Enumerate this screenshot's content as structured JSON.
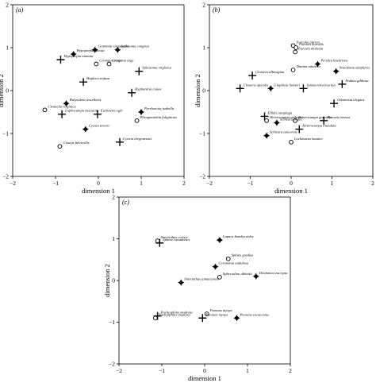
{
  "chart_data": [
    {
      "type": "scatter",
      "panel_label": "(a)",
      "xlabel": "dimension 1",
      "ylabel": "dimension 2",
      "xlim": [
        -2,
        2
      ],
      "ylim": [
        -2,
        2
      ],
      "xticks": [
        "−2",
        "−1",
        "0",
        "1",
        "2"
      ],
      "yticks": [
        "2",
        "1",
        "0",
        "−1",
        "−2"
      ],
      "points": [
        {
          "label": "Grammia virguncula",
          "x": -0.08,
          "y": 0.95,
          "marker": "filled"
        },
        {
          "label": "Spilosoma congrua",
          "x": 0.45,
          "y": 0.95,
          "marker": "filled"
        },
        {
          "label": "Hypoprepia fucosa",
          "x": -0.58,
          "y": 0.85,
          "marker": "filled"
        },
        {
          "label": "Grammia virgo",
          "x": -0.05,
          "y": 0.62,
          "marker": "open"
        },
        {
          "label": "Grammia arge",
          "x": 0.25,
          "y": 0.62,
          "marker": "open"
        },
        {
          "label": "Hypoprepia miniata",
          "x": -0.88,
          "y": 0.72,
          "marker": "plus"
        },
        {
          "label": "Spilosoma virginica",
          "x": 0.95,
          "y": 0.45,
          "marker": "plus"
        },
        {
          "label": "Haploa confusa",
          "x": -0.35,
          "y": 0.2,
          "marker": "plus"
        },
        {
          "label": "Hyphantria cunea",
          "x": 0.78,
          "y": -0.05,
          "marker": "plus"
        },
        {
          "label": "Halysidota tessellaris",
          "x": -0.75,
          "y": -0.3,
          "marker": "filled"
        },
        {
          "label": "Euchaetes egle",
          "x": -0.02,
          "y": -0.55,
          "marker": "plus"
        },
        {
          "label": "Pyrrharctia isabella",
          "x": 1.0,
          "y": -0.5,
          "marker": "filled"
        },
        {
          "label": "Ctenucha virginica",
          "x": -1.25,
          "y": -0.45,
          "marker": "open"
        },
        {
          "label": "Lophocampa maculata",
          "x": -0.85,
          "y": -0.55,
          "marker": "plus"
        },
        {
          "label": "Phragmatobia fuliginosa",
          "x": 0.9,
          "y": -0.7,
          "marker": "open"
        },
        {
          "label": "Cycnia tenera",
          "x": -0.3,
          "y": -0.9,
          "marker": "filled"
        },
        {
          "label": "Cisseps fulvicollis",
          "x": -0.9,
          "y": -1.3,
          "marker": "open"
        },
        {
          "label": "Cycnia oregonensis",
          "x": 0.5,
          "y": -1.2,
          "marker": "plus"
        }
      ]
    },
    {
      "type": "scatter",
      "panel_label": "(b)",
      "xlabel": "dimension 1",
      "ylabel": "dimension 2",
      "xlim": [
        -2,
        2
      ],
      "ylim": [
        -2,
        2
      ],
      "xticks": [
        "−2",
        "−1",
        "0",
        "1",
        "2"
      ],
      "yticks": [
        "2",
        "1",
        "0",
        "−1",
        "−2"
      ],
      "points": [
        {
          "label": "Furcula cinerea",
          "x": 0.05,
          "y": 1.05,
          "marker": "open"
        },
        {
          "label": "Furcula borealis",
          "x": 0.12,
          "y": 1.0,
          "marker": "open"
        },
        {
          "label": "Furcula modesta",
          "x": 0.1,
          "y": 0.9,
          "marker": "open"
        },
        {
          "label": "Peridea basitriens",
          "x": 0.65,
          "y": 0.62,
          "marker": "filled"
        },
        {
          "label": "Notodonta simplaria",
          "x": 1.1,
          "y": 0.45,
          "marker": "filled"
        },
        {
          "label": "Datana ministra",
          "x": 0.05,
          "y": 0.48,
          "marker": "open"
        },
        {
          "label": "Clostera albosigma",
          "x": -0.95,
          "y": 0.35,
          "marker": "plus"
        },
        {
          "label": "Clostera apicalis",
          "x": -1.25,
          "y": 0.05,
          "marker": "plus"
        },
        {
          "label": "Gluphisia lintneri",
          "x": -0.5,
          "y": 0.05,
          "marker": "filled"
        },
        {
          "label": "Symmerista leucitys",
          "x": 0.3,
          "y": 0.05,
          "marker": "plus"
        },
        {
          "label": "Nadata gibbosa",
          "x": 1.25,
          "y": 0.15,
          "marker": "plus"
        },
        {
          "label": "Odontosia elegans",
          "x": 1.05,
          "y": -0.3,
          "marker": "plus"
        },
        {
          "label": "Ellida caniplaga",
          "x": -0.65,
          "y": -0.6,
          "marker": "plus"
        },
        {
          "label": "Heterocampa guttivitta",
          "x": 0.1,
          "y": -0.7,
          "marker": "open"
        },
        {
          "label": "Heterocampa umbrata",
          "x": -0.6,
          "y": -0.7,
          "marker": "open"
        },
        {
          "label": "Schizura badia",
          "x": -0.35,
          "y": -0.75,
          "marker": "filled"
        },
        {
          "label": "Pheosia rimosa",
          "x": 0.8,
          "y": -0.7,
          "marker": "plus"
        },
        {
          "label": "Heterocampa biundata",
          "x": 0.2,
          "y": -0.9,
          "marker": "plus"
        },
        {
          "label": "Schizura unicornis",
          "x": -0.6,
          "y": -1.05,
          "marker": "filled"
        },
        {
          "label": "Lochmaeus manteo",
          "x": 0.0,
          "y": -1.2,
          "marker": "open"
        }
      ]
    },
    {
      "type": "scatter",
      "panel_label": "(c)",
      "xlabel": "dimension 1",
      "ylabel": "dimension 2",
      "xlim": [
        -2,
        2
      ],
      "ylim": [
        -2,
        2
      ],
      "xticks": [
        "−2",
        "−1",
        "0",
        "1",
        "2"
      ],
      "yticks": [
        "2",
        "1",
        "0",
        "−1",
        "−2"
      ],
      "points": [
        {
          "label": "Smerinthus cerisyi",
          "x": -1.1,
          "y": 0.95,
          "marker": "open"
        },
        {
          "label": "Lapara bombycoides",
          "x": 0.35,
          "y": 0.97,
          "marker": "filled"
        },
        {
          "label": "Sphinx canadensis",
          "x": -1.05,
          "y": 0.9,
          "marker": "plus"
        },
        {
          "label": "Sphinx gordius",
          "x": 0.55,
          "y": 0.52,
          "marker": "open"
        },
        {
          "label": "Ceratomia undulosa",
          "x": 0.25,
          "y": 0.33,
          "marker": "filled"
        },
        {
          "label": "Sphecodina abbottii",
          "x": 0.35,
          "y": 0.08,
          "marker": "open"
        },
        {
          "label": "Deidamia inscripta",
          "x": 1.2,
          "y": 0.1,
          "marker": "filled"
        },
        {
          "label": "Smerinthus jamaicensis",
          "x": -0.55,
          "y": -0.05,
          "marker": "filled"
        },
        {
          "label": "Paonias myops",
          "x": 0.05,
          "y": -0.8,
          "marker": "open"
        },
        {
          "label": "Paonias excaecatus",
          "x": 0.75,
          "y": -0.9,
          "marker": "filled"
        },
        {
          "label": "Pachysphinx modesta",
          "x": -1.15,
          "y": -0.9,
          "marker": "open"
        },
        {
          "label": "Pachysphinx modesta",
          "x": -1.1,
          "y": -0.85,
          "marker": "plus"
        },
        {
          "label": "Paonias myops",
          "x": -0.05,
          "y": -0.9,
          "marker": "plus"
        }
      ]
    }
  ]
}
